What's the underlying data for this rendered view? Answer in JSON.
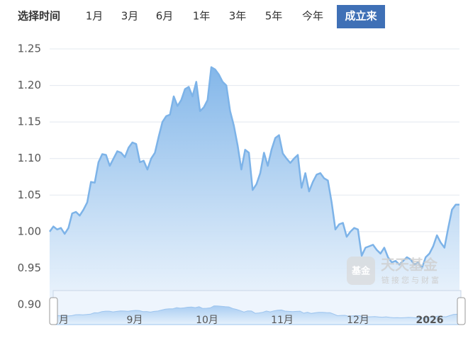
{
  "toolbar": {
    "label": "选择时间",
    "buttons": [
      "1月",
      "3月",
      "6月",
      "1年",
      "3年",
      "5年",
      "今年",
      "成立来"
    ],
    "selected": 7
  },
  "chart_data": {
    "type": "line",
    "series": [
      {
        "color": "#7db3e8",
        "values": [
          1.0,
          1.007,
          1.003,
          1.005,
          0.997,
          1.005,
          1.025,
          1.027,
          1.022,
          1.03,
          1.04,
          1.068,
          1.067,
          1.095,
          1.106,
          1.105,
          1.09,
          1.1,
          1.11,
          1.108,
          1.102,
          1.115,
          1.122,
          1.12,
          1.095,
          1.097,
          1.085,
          1.1,
          1.108,
          1.13,
          1.15,
          1.158,
          1.16,
          1.185,
          1.172,
          1.18,
          1.195,
          1.198,
          1.185,
          1.205,
          1.165,
          1.17,
          1.18,
          1.225,
          1.222,
          1.215,
          1.205,
          1.2,
          1.165,
          1.145,
          1.118,
          1.085,
          1.112,
          1.108,
          1.057,
          1.065,
          1.08,
          1.108,
          1.09,
          1.112,
          1.128,
          1.132,
          1.107,
          1.1,
          1.094,
          1.1,
          1.105,
          1.06,
          1.08,
          1.055,
          1.068,
          1.078,
          1.08,
          1.073,
          1.07,
          1.04,
          1.003,
          1.01,
          1.012,
          0.993,
          1.0,
          1.005,
          1.003,
          0.967,
          0.978,
          0.98,
          0.982,
          0.975,
          0.97,
          0.978,
          0.965,
          0.958,
          0.96,
          0.955,
          0.96,
          0.965,
          0.962,
          0.955,
          0.958,
          0.95,
          0.965,
          0.97,
          0.98,
          0.995,
          0.985,
          0.978,
          1.005,
          1.03,
          1.037,
          1.037
        ]
      }
    ],
    "ylim": [
      0.9,
      1.25
    ],
    "yticks": [
      {
        "value": 0.9,
        "label": "0.90"
      },
      {
        "value": 0.95,
        "label": "0.95"
      },
      {
        "value": 1.0,
        "label": "1.00"
      },
      {
        "value": 1.05,
        "label": "1.05"
      },
      {
        "value": 1.1,
        "label": "1.10"
      },
      {
        "value": 1.15,
        "label": "1.15"
      },
      {
        "value": 1.2,
        "label": "1.20"
      },
      {
        "value": 1.25,
        "label": "1.25"
      }
    ],
    "grid": true,
    "slider_labels": [
      "月",
      "9月",
      "10月",
      "11月",
      "12月",
      "2026"
    ]
  },
  "watermark": {
    "logo": "基金",
    "title": "天天基金",
    "subtitle": "链接您与财富"
  }
}
